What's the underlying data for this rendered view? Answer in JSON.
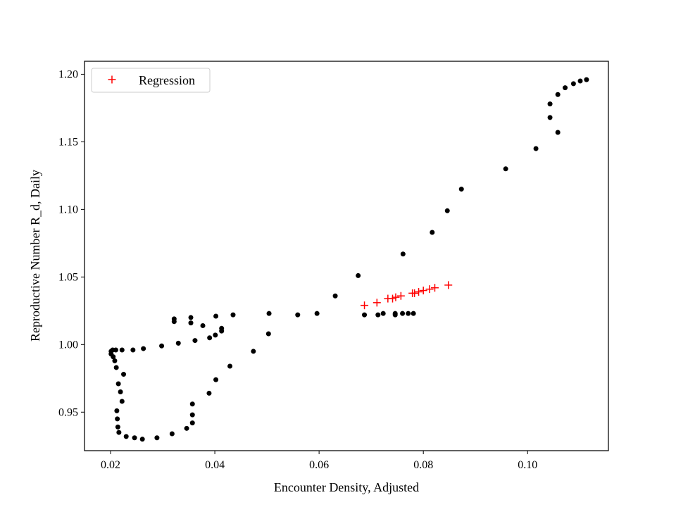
{
  "chart_data": {
    "type": "scatter",
    "title": "",
    "xlabel": "Encounter Density, Adjusted",
    "ylabel": "Reproductive Number R_d, Daily",
    "xlim": [
      0.015,
      0.1155
    ],
    "ylim": [
      0.9215,
      1.2096
    ],
    "x_ticks": [
      0.02,
      0.04,
      0.06,
      0.08,
      0.1
    ],
    "x_tick_labels": [
      "0.02",
      "0.04",
      "0.06",
      "0.08",
      "0.10"
    ],
    "y_ticks": [
      0.95,
      1.0,
      1.05,
      1.1,
      1.15,
      1.2
    ],
    "y_tick_labels": [
      "0.95",
      "1.00",
      "1.05",
      "1.10",
      "1.15",
      "1.20"
    ],
    "grid": false,
    "legend_position": "top-left",
    "colors": {
      "observed": "#000000",
      "regression": "#ff0000"
    },
    "series": [
      {
        "marker": "dot",
        "color": "#000000",
        "points": [
          [
            0.1113,
            1.196
          ],
          [
            0.1101,
            1.195
          ],
          [
            0.1088,
            1.193
          ],
          [
            0.1072,
            1.19
          ],
          [
            0.1058,
            1.185
          ],
          [
            0.1043,
            1.178
          ],
          [
            0.1043,
            1.168
          ],
          [
            0.1058,
            1.157
          ],
          [
            0.1016,
            1.145
          ],
          [
            0.0958,
            1.13
          ],
          [
            0.0873,
            1.115
          ],
          [
            0.0846,
            1.099
          ],
          [
            0.0817,
            1.083
          ],
          [
            0.0761,
            1.067
          ],
          [
            0.0675,
            1.051
          ],
          [
            0.0631,
            1.036
          ],
          [
            0.0687,
            1.022
          ],
          [
            0.0713,
            1.022
          ],
          [
            0.0723,
            1.023
          ],
          [
            0.0746,
            1.022
          ],
          [
            0.0746,
            1.023
          ],
          [
            0.076,
            1.023
          ],
          [
            0.0771,
            1.023
          ],
          [
            0.0781,
            1.023
          ],
          [
            0.0596,
            1.023
          ],
          [
            0.0559,
            1.022
          ],
          [
            0.0504,
            1.023
          ],
          [
            0.0435,
            1.022
          ],
          [
            0.0402,
            1.021
          ],
          [
            0.0354,
            1.02
          ],
          [
            0.0322,
            1.019
          ],
          [
            0.0322,
            1.017
          ],
          [
            0.0354,
            1.016
          ],
          [
            0.0377,
            1.014
          ],
          [
            0.0413,
            1.012
          ],
          [
            0.0413,
            1.01
          ],
          [
            0.0401,
            1.007
          ],
          [
            0.039,
            1.005
          ],
          [
            0.0362,
            1.003
          ],
          [
            0.033,
            1.001
          ],
          [
            0.0298,
            0.999
          ],
          [
            0.0263,
            0.997
          ],
          [
            0.0243,
            0.996
          ],
          [
            0.0222,
            0.996
          ],
          [
            0.021,
            0.996
          ],
          [
            0.0204,
            0.996
          ],
          [
            0.0201,
            0.995
          ],
          [
            0.0201,
            0.993
          ],
          [
            0.0205,
            0.991
          ],
          [
            0.0208,
            0.988
          ],
          [
            0.0211,
            0.983
          ],
          [
            0.0225,
            0.978
          ],
          [
            0.0215,
            0.971
          ],
          [
            0.0219,
            0.965
          ],
          [
            0.0222,
            0.958
          ],
          [
            0.0212,
            0.951
          ],
          [
            0.0213,
            0.945
          ],
          [
            0.0214,
            0.939
          ],
          [
            0.0216,
            0.935
          ],
          [
            0.023,
            0.932
          ],
          [
            0.0246,
            0.931
          ],
          [
            0.0261,
            0.93
          ],
          [
            0.0289,
            0.931
          ],
          [
            0.0318,
            0.934
          ],
          [
            0.0346,
            0.938
          ],
          [
            0.0357,
            0.942
          ],
          [
            0.0357,
            0.948
          ],
          [
            0.0357,
            0.956
          ],
          [
            0.0389,
            0.964
          ],
          [
            0.0402,
            0.974
          ],
          [
            0.0429,
            0.984
          ],
          [
            0.0474,
            0.995
          ],
          [
            0.0503,
            1.008
          ]
        ]
      },
      {
        "name": "Regression",
        "marker": "plus",
        "color": "#ff0000",
        "points": [
          [
            0.0687,
            1.029
          ],
          [
            0.0711,
            1.031
          ],
          [
            0.0732,
            1.034
          ],
          [
            0.0741,
            1.034
          ],
          [
            0.0747,
            1.035
          ],
          [
            0.0757,
            1.036
          ],
          [
            0.0779,
            1.038
          ],
          [
            0.0783,
            1.038
          ],
          [
            0.0791,
            1.039
          ],
          [
            0.08,
            1.04
          ],
          [
            0.0812,
            1.041
          ],
          [
            0.0822,
            1.042
          ],
          [
            0.0848,
            1.044
          ]
        ]
      }
    ]
  }
}
